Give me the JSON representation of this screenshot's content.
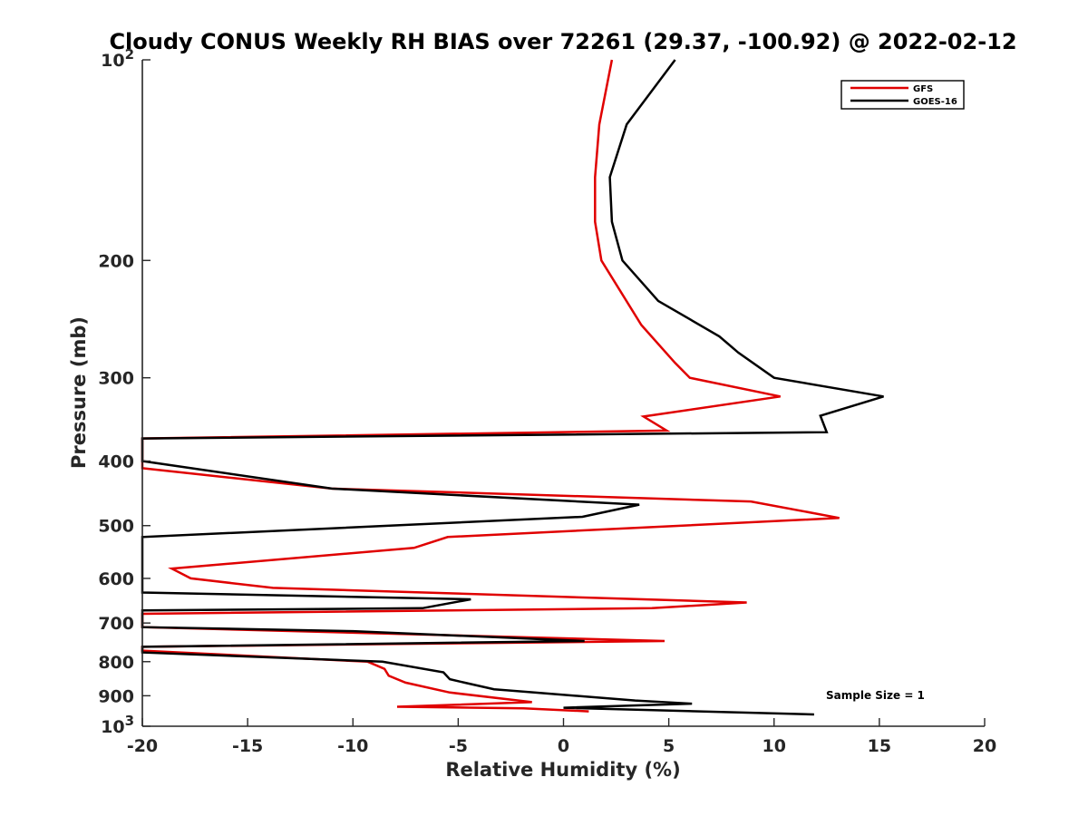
{
  "chart_data": {
    "type": "line",
    "title": "Cloudy CONUS Weekly RH BIAS over 72261 (29.37, -100.92) @ 2022-02-12",
    "xlabel": "Relative Humidity (%)",
    "ylabel": "Pressure (mb)",
    "xlim": [
      -20,
      20
    ],
    "ylim": [
      100,
      1000
    ],
    "yscale": "log",
    "y_reversed": true,
    "x_ticks": [
      -20,
      -15,
      -10,
      -5,
      0,
      5,
      10,
      15,
      20
    ],
    "x_tick_labels": [
      "-20",
      "-15",
      "-10",
      "-5",
      "0",
      "5",
      "10",
      "15",
      "20"
    ],
    "y_ticks": [
      200,
      300,
      400,
      500,
      600,
      700,
      800,
      900
    ],
    "y_tick_labels": [
      "200",
      "300",
      "400",
      "500",
      "600",
      "700",
      "800",
      "900"
    ],
    "y_power_labels": [
      {
        "value": 100,
        "base": "10",
        "exp": "2"
      },
      {
        "value": 1000,
        "base": "10",
        "exp": "3"
      }
    ],
    "legend_position": "top-right",
    "annotation": "Sample Size = 1",
    "series": [
      {
        "name": "GFS",
        "color": "#e00000",
        "points": [
          [
            2.3,
            100
          ],
          [
            1.7,
            125
          ],
          [
            1.5,
            150
          ],
          [
            1.5,
            175
          ],
          [
            1.8,
            200
          ],
          [
            3.7,
            250
          ],
          [
            5.3,
            285
          ],
          [
            6.0,
            300
          ],
          [
            10.3,
            320
          ],
          [
            3.8,
            343
          ],
          [
            4.9,
            360
          ],
          [
            -20.0,
            370
          ],
          [
            -20.0,
            370
          ],
          [
            -20.0,
            410
          ],
          [
            -11.0,
            440
          ],
          [
            8.9,
            460
          ],
          [
            13.1,
            487
          ],
          [
            -5.5,
            520
          ],
          [
            -7.1,
            540
          ],
          [
            -18.6,
            580
          ],
          [
            -17.7,
            600
          ],
          [
            -13.8,
            620
          ],
          [
            8.7,
            652
          ],
          [
            4.2,
            665
          ],
          [
            -20.0,
            678
          ],
          [
            -20.0,
            710
          ],
          [
            -5.6,
            730
          ],
          [
            4.8,
            745
          ],
          [
            -20.0,
            760
          ],
          [
            -20.0,
            770
          ],
          [
            -9.3,
            800
          ],
          [
            -8.5,
            820
          ],
          [
            -8.3,
            840
          ],
          [
            -7.5,
            860
          ],
          [
            -5.4,
            890
          ],
          [
            -1.5,
            920
          ],
          [
            -7.9,
            935
          ],
          [
            -1.9,
            940
          ],
          [
            1.2,
            950
          ]
        ]
      },
      {
        "name": "GOES-16",
        "color": "#000000",
        "points": [
          [
            5.3,
            100
          ],
          [
            3.0,
            125
          ],
          [
            2.2,
            150
          ],
          [
            2.3,
            175
          ],
          [
            2.8,
            200
          ],
          [
            4.5,
            230
          ],
          [
            7.4,
            260
          ],
          [
            8.3,
            275
          ],
          [
            10.0,
            300
          ],
          [
            15.2,
            320
          ],
          [
            12.2,
            342
          ],
          [
            12.5,
            362
          ],
          [
            -20.0,
            370
          ],
          [
            -20.0,
            400
          ],
          [
            -11.0,
            440
          ],
          [
            3.6,
            465
          ],
          [
            0.9,
            485
          ],
          [
            -20.0,
            520
          ],
          [
            -20.0,
            630
          ],
          [
            -4.4,
            645
          ],
          [
            -6.7,
            665
          ],
          [
            -20.0,
            670
          ],
          [
            -20.0,
            710
          ],
          [
            -10.0,
            720
          ],
          [
            1.0,
            745
          ],
          [
            -20.0,
            760
          ],
          [
            -20.0,
            775
          ],
          [
            -8.6,
            800
          ],
          [
            -5.7,
            830
          ],
          [
            -5.4,
            850
          ],
          [
            -4.7,
            860
          ],
          [
            -3.3,
            880
          ],
          [
            3.4,
            915
          ],
          [
            6.1,
            925
          ],
          [
            0.0,
            938
          ],
          [
            11.9,
            960
          ]
        ]
      }
    ]
  }
}
